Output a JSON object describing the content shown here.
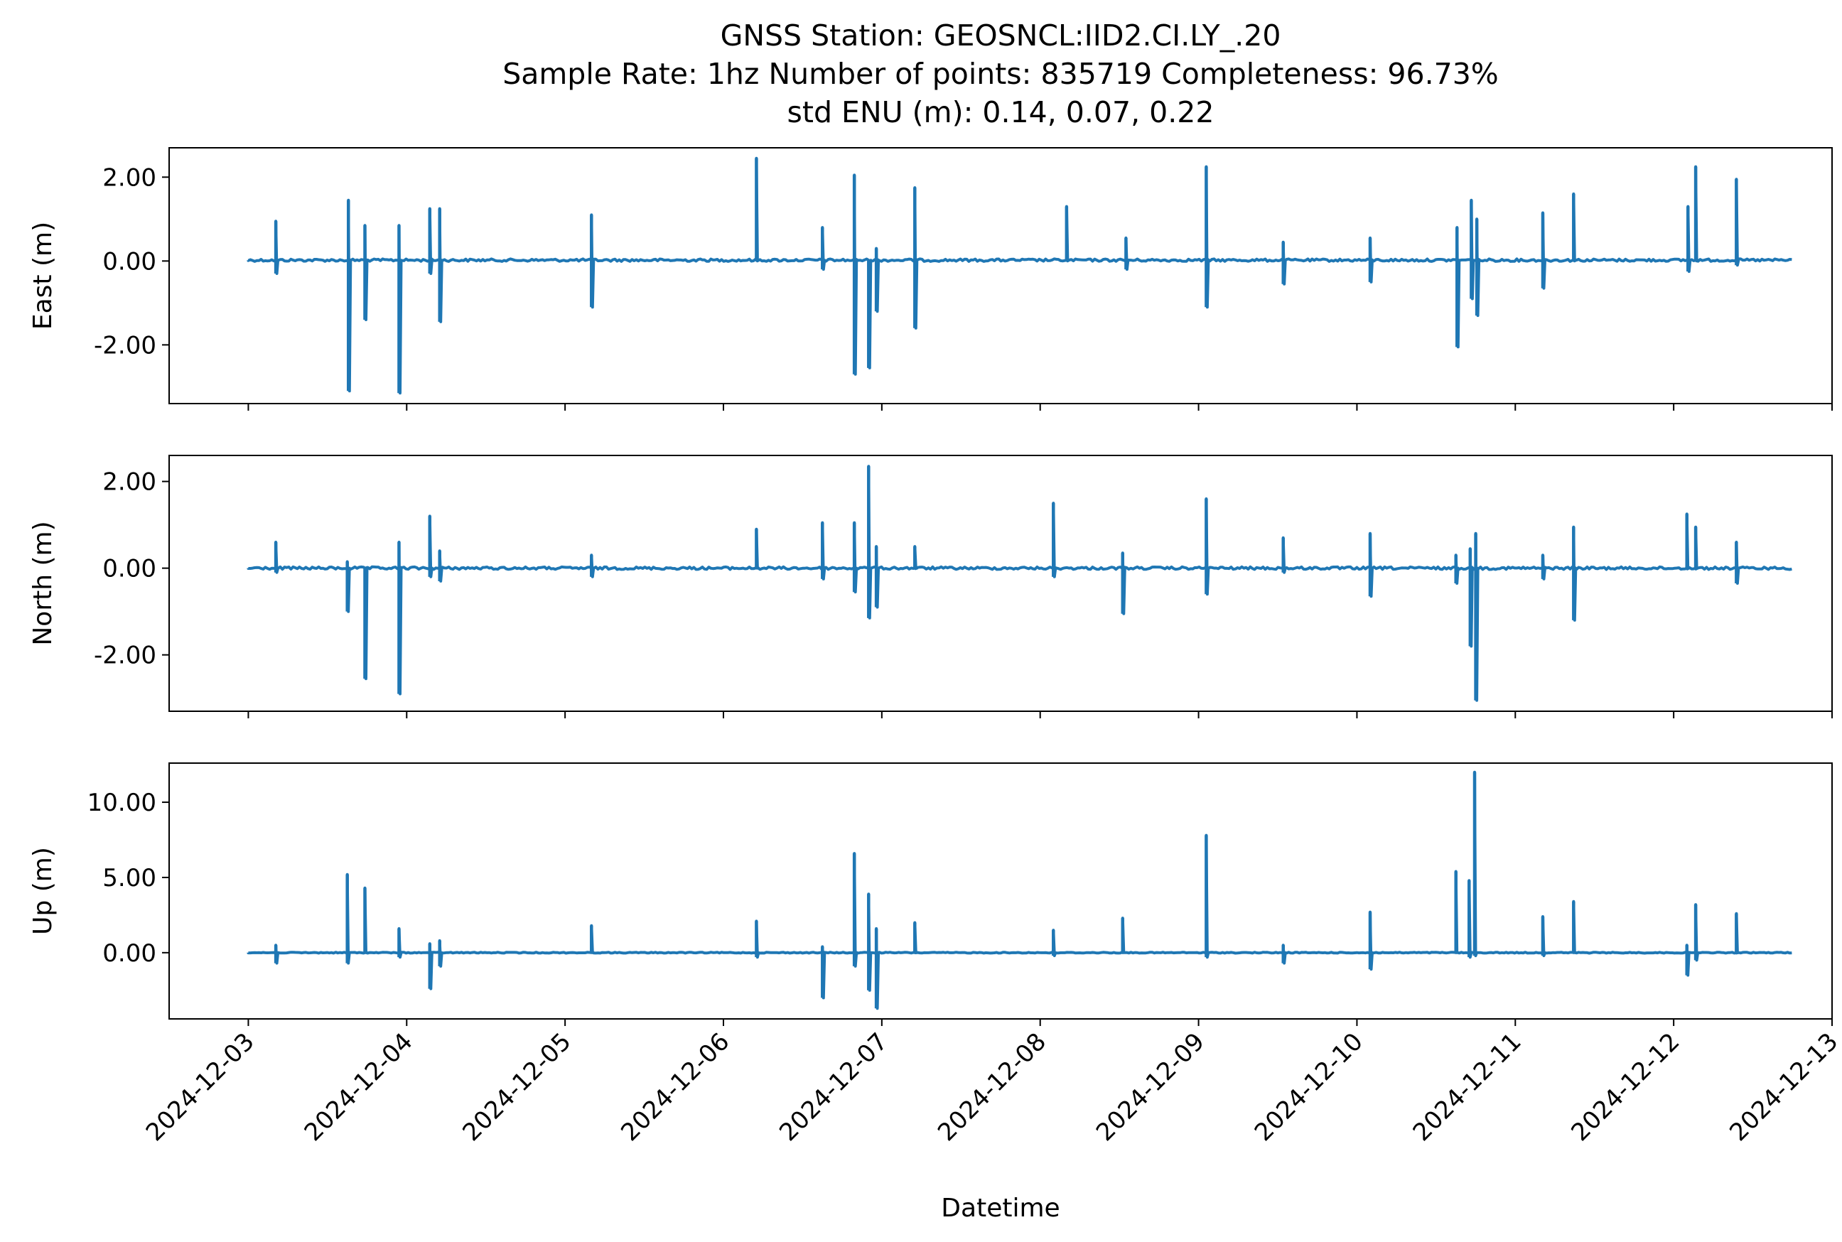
{
  "title": {
    "line1": "GNSS Station: GEOSNCL:IID2.CI.LY_.20",
    "line2": "Sample Rate: 1hz   Number of points: 835719    Completeness:  96.73%",
    "line3": "std ENU (m):  0.14, 0.07, 0.22"
  },
  "colors": {
    "series": "#1f77b4",
    "axes": "#000000",
    "background": "#ffffff"
  },
  "chart_data": [
    {
      "type": "line",
      "ylabel": "East (m)",
      "xlabel": "",
      "xlim": [
        "2024-12-02T12:00",
        "2024-12-13T00:00"
      ],
      "ylim": [
        -3.4,
        2.7
      ],
      "yticks": [
        2.0,
        0.0,
        -2.0
      ],
      "ytick_labels": [
        "2.00",
        "0.00",
        "-2.00"
      ],
      "x_tick_labels_visible": false,
      "series": [
        {
          "baseline": 0.02,
          "x_range": [
            "2024-12-03T00:00",
            "2024-12-12T18:00"
          ],
          "spikes": [
            {
              "t": "2024-12-03T04:10",
              "min": -0.3,
              "max": 0.95
            },
            {
              "t": "2024-12-03T15:10",
              "min": -3.1,
              "max": 1.45
            },
            {
              "t": "2024-12-03T17:40",
              "min": -1.4,
              "max": 0.85
            },
            {
              "t": "2024-12-03T22:50",
              "min": -3.15,
              "max": 0.85
            },
            {
              "t": "2024-12-04T03:30",
              "min": -0.3,
              "max": 1.25
            },
            {
              "t": "2024-12-04T05:00",
              "min": -1.45,
              "max": 1.25
            },
            {
              "t": "2024-12-05T04:00",
              "min": -1.1,
              "max": 1.1
            },
            {
              "t": "2024-12-06T05:00",
              "min": 0.0,
              "max": 2.45
            },
            {
              "t": "2024-12-06T15:00",
              "min": -0.2,
              "max": 0.8
            },
            {
              "t": "2024-12-06T19:50",
              "min": -2.7,
              "max": 2.05
            },
            {
              "t": "2024-12-06T22:00",
              "min": -2.55,
              "max": 0.0
            },
            {
              "t": "2024-12-06T23:10",
              "min": -1.2,
              "max": 0.3
            },
            {
              "t": "2024-12-07T05:00",
              "min": -1.6,
              "max": 1.75
            },
            {
              "t": "2024-12-08T04:00",
              "min": 0.0,
              "max": 1.3
            },
            {
              "t": "2024-12-08T13:00",
              "min": -0.2,
              "max": 0.55
            },
            {
              "t": "2024-12-09T01:10",
              "min": -1.1,
              "max": 2.25
            },
            {
              "t": "2024-12-09T12:50",
              "min": -0.55,
              "max": 0.45
            },
            {
              "t": "2024-12-10T02:00",
              "min": -0.5,
              "max": 0.55
            },
            {
              "t": "2024-12-10T15:10",
              "min": -2.05,
              "max": 0.8
            },
            {
              "t": "2024-12-10T17:20",
              "min": -0.9,
              "max": 1.45
            },
            {
              "t": "2024-12-10T18:10",
              "min": -1.3,
              "max": 1.0
            },
            {
              "t": "2024-12-11T04:10",
              "min": -0.65,
              "max": 1.15
            },
            {
              "t": "2024-12-11T08:50",
              "min": 0.0,
              "max": 1.6
            },
            {
              "t": "2024-12-12T02:10",
              "min": -0.25,
              "max": 1.3
            },
            {
              "t": "2024-12-12T03:20",
              "min": 0.0,
              "max": 2.25
            },
            {
              "t": "2024-12-12T09:30",
              "min": -0.1,
              "max": 1.95
            }
          ]
        }
      ]
    },
    {
      "type": "line",
      "ylabel": "North (m)",
      "xlabel": "",
      "xlim": [
        "2024-12-02T12:00",
        "2024-12-13T00:00"
      ],
      "ylim": [
        -3.3,
        2.6
      ],
      "yticks": [
        2.0,
        0.0,
        -2.0
      ],
      "ytick_labels": [
        "2.00",
        "0.00",
        "-2.00"
      ],
      "x_tick_labels_visible": false,
      "series": [
        {
          "baseline": 0.0,
          "x_range": [
            "2024-12-03T00:00",
            "2024-12-12T18:00"
          ],
          "spikes": [
            {
              "t": "2024-12-03T04:10",
              "min": -0.1,
              "max": 0.6
            },
            {
              "t": "2024-12-03T15:00",
              "min": -1.0,
              "max": 0.15
            },
            {
              "t": "2024-12-03T17:40",
              "min": -2.55,
              "max": 0.0
            },
            {
              "t": "2024-12-03T22:50",
              "min": -2.9,
              "max": 0.6
            },
            {
              "t": "2024-12-04T03:30",
              "min": -0.2,
              "max": 1.2
            },
            {
              "t": "2024-12-04T05:00",
              "min": -0.3,
              "max": 0.4
            },
            {
              "t": "2024-12-05T04:00",
              "min": -0.2,
              "max": 0.3
            },
            {
              "t": "2024-12-06T05:00",
              "min": 0.0,
              "max": 0.9
            },
            {
              "t": "2024-12-06T15:00",
              "min": -0.25,
              "max": 1.05
            },
            {
              "t": "2024-12-06T19:50",
              "min": -0.55,
              "max": 1.05
            },
            {
              "t": "2024-12-06T22:00",
              "min": -1.15,
              "max": 2.35
            },
            {
              "t": "2024-12-06T23:10",
              "min": -0.9,
              "max": 0.5
            },
            {
              "t": "2024-12-07T05:00",
              "min": 0.0,
              "max": 0.5
            },
            {
              "t": "2024-12-08T02:00",
              "min": -0.2,
              "max": 1.5
            },
            {
              "t": "2024-12-08T12:30",
              "min": -1.05,
              "max": 0.35
            },
            {
              "t": "2024-12-09T01:10",
              "min": -0.6,
              "max": 1.6
            },
            {
              "t": "2024-12-09T12:50",
              "min": -0.1,
              "max": 0.7
            },
            {
              "t": "2024-12-10T02:00",
              "min": -0.65,
              "max": 0.8
            },
            {
              "t": "2024-12-10T15:00",
              "min": -0.35,
              "max": 0.3
            },
            {
              "t": "2024-12-10T17:10",
              "min": -1.8,
              "max": 0.45
            },
            {
              "t": "2024-12-10T18:00",
              "min": -3.05,
              "max": 0.8
            },
            {
              "t": "2024-12-11T04:10",
              "min": -0.25,
              "max": 0.3
            },
            {
              "t": "2024-12-11T08:50",
              "min": -1.2,
              "max": 0.95
            },
            {
              "t": "2024-12-12T02:00",
              "min": 0.0,
              "max": 1.25
            },
            {
              "t": "2024-12-12T03:20",
              "min": 0.0,
              "max": 0.95
            },
            {
              "t": "2024-12-12T09:30",
              "min": -0.35,
              "max": 0.6
            }
          ]
        }
      ]
    },
    {
      "type": "line",
      "ylabel": "Up (m)",
      "xlabel": "Datetime",
      "xlim": [
        "2024-12-02T12:00",
        "2024-12-13T00:00"
      ],
      "ylim": [
        -4.4,
        12.6
      ],
      "yticks": [
        10.0,
        5.0,
        0.0
      ],
      "ytick_labels": [
        "10.00",
        "5.00",
        "0.00"
      ],
      "x_ticks": [
        "2024-12-03",
        "2024-12-04",
        "2024-12-05",
        "2024-12-06",
        "2024-12-07",
        "2024-12-08",
        "2024-12-09",
        "2024-12-10",
        "2024-12-11",
        "2024-12-12",
        "2024-12-13"
      ],
      "x_tick_labels_visible": true,
      "series": [
        {
          "baseline": 0.0,
          "x_range": [
            "2024-12-03T00:00",
            "2024-12-12T18:00"
          ],
          "spikes": [
            {
              "t": "2024-12-03T04:10",
              "min": -0.7,
              "max": 0.5
            },
            {
              "t": "2024-12-03T15:00",
              "min": -0.7,
              "max": 5.2
            },
            {
              "t": "2024-12-03T17:40",
              "min": 0.0,
              "max": 4.3
            },
            {
              "t": "2024-12-03T22:50",
              "min": -0.3,
              "max": 1.6
            },
            {
              "t": "2024-12-04T03:30",
              "min": -2.4,
              "max": 0.6
            },
            {
              "t": "2024-12-04T05:00",
              "min": -0.9,
              "max": 0.8
            },
            {
              "t": "2024-12-05T04:00",
              "min": 0.0,
              "max": 1.8
            },
            {
              "t": "2024-12-06T05:00",
              "min": -0.3,
              "max": 2.1
            },
            {
              "t": "2024-12-06T15:00",
              "min": -3.0,
              "max": 0.4
            },
            {
              "t": "2024-12-06T19:50",
              "min": -0.9,
              "max": 6.6
            },
            {
              "t": "2024-12-06T22:00",
              "min": -2.5,
              "max": 3.9
            },
            {
              "t": "2024-12-06T23:10",
              "min": -3.7,
              "max": 1.6
            },
            {
              "t": "2024-12-07T05:00",
              "min": 0.0,
              "max": 2.0
            },
            {
              "t": "2024-12-08T02:00",
              "min": -0.2,
              "max": 1.5
            },
            {
              "t": "2024-12-08T12:30",
              "min": 0.0,
              "max": 2.3
            },
            {
              "t": "2024-12-09T01:10",
              "min": -0.3,
              "max": 7.8
            },
            {
              "t": "2024-12-09T12:50",
              "min": -0.7,
              "max": 0.5
            },
            {
              "t": "2024-12-10T02:00",
              "min": -1.1,
              "max": 2.7
            },
            {
              "t": "2024-12-10T15:00",
              "min": 0.0,
              "max": 5.4
            },
            {
              "t": "2024-12-10T17:00",
              "min": -0.3,
              "max": 4.8
            },
            {
              "t": "2024-12-10T17:50",
              "min": -0.2,
              "max": 12.0
            },
            {
              "t": "2024-12-11T04:10",
              "min": -0.2,
              "max": 2.4
            },
            {
              "t": "2024-12-11T08:50",
              "min": 0.0,
              "max": 3.4
            },
            {
              "t": "2024-12-12T02:00",
              "min": -1.5,
              "max": 0.5
            },
            {
              "t": "2024-12-12T03:20",
              "min": -0.5,
              "max": 3.2
            },
            {
              "t": "2024-12-12T09:30",
              "min": 0.0,
              "max": 2.6
            }
          ]
        }
      ]
    }
  ]
}
